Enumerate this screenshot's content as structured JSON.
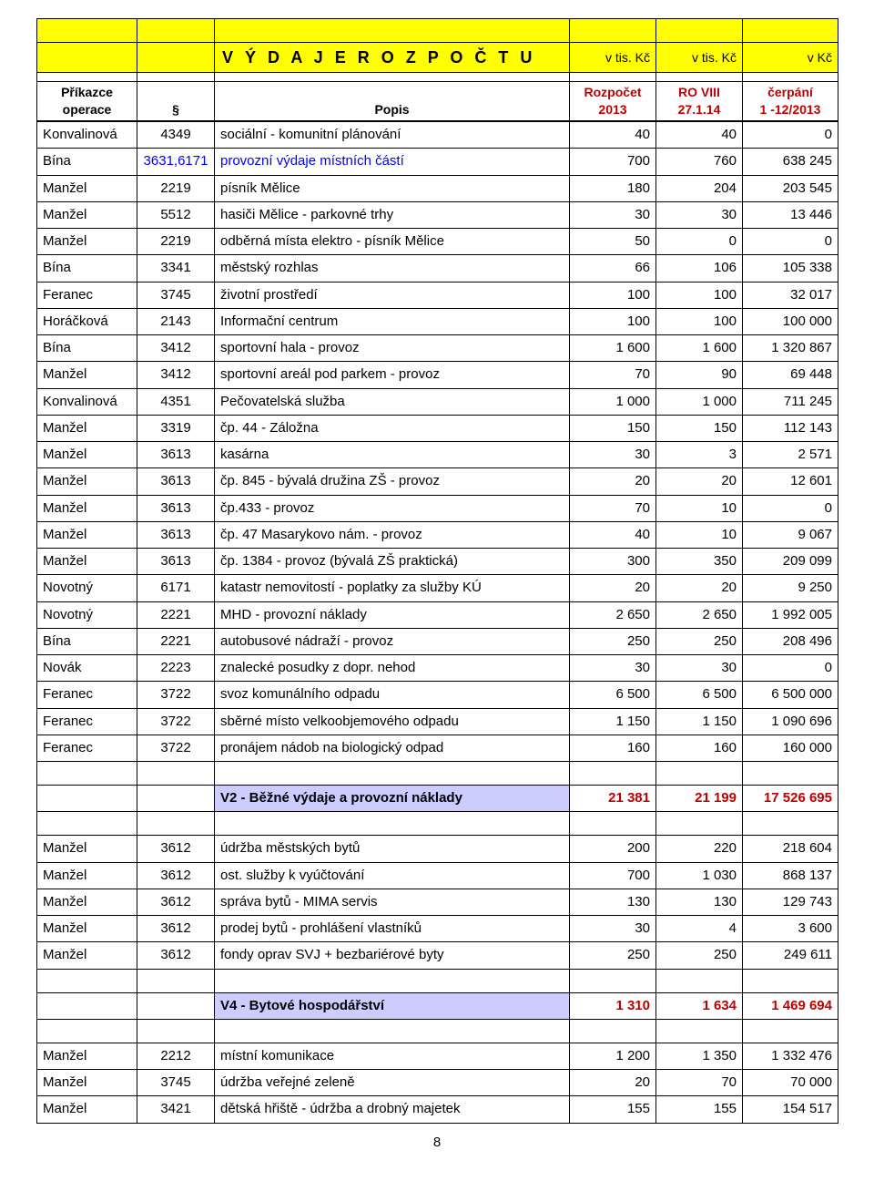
{
  "header": {
    "title": "V Ý D A J E   R O Z P O Č T U",
    "unit1": "v tis. Kč",
    "unit2": "v tis. Kč",
    "unit3": "v Kč",
    "col_prikazce_l1": "Příkazce",
    "col_prikazce_l2": "operace",
    "col_code": "§",
    "col_popis": "Popis",
    "col_rozpocet_l1": "Rozpočet",
    "col_rozpocet_l2": "2013",
    "col_ro_l1": "RO VIII",
    "col_ro_l2": "27.1.14",
    "col_cerp_l1": "čerpání",
    "col_cerp_l2": "1 -12/2013"
  },
  "rows": [
    {
      "p": "Konvalinová",
      "c": "4349",
      "d": "sociální - komunitní plánování",
      "v1": "40",
      "v2": "40",
      "v3": "0"
    },
    {
      "p": "Bína",
      "c": "3631,6171",
      "d": "provozní výdaje místních částí",
      "v1": "700",
      "v2": "760",
      "v3": "638 245",
      "blue": true
    },
    {
      "p": "Manžel",
      "c": "2219",
      "d": "písník Mělice",
      "v1": "180",
      "v2": "204",
      "v3": "203 545"
    },
    {
      "p": "Manžel",
      "c": "5512",
      "d": "hasiči Mělice - parkovné trhy",
      "v1": "30",
      "v2": "30",
      "v3": "13 446"
    },
    {
      "p": "Manžel",
      "c": "2219",
      "d": "odběrná místa elektro - písník Mělice",
      "v1": "50",
      "v2": "0",
      "v3": "0"
    },
    {
      "p": "Bína",
      "c": "3341",
      "d": "městský rozhlas",
      "v1": "66",
      "v2": "106",
      "v3": "105 338"
    },
    {
      "p": "Feranec",
      "c": "3745",
      "d": "životní prostředí",
      "v1": "100",
      "v2": "100",
      "v3": "32 017"
    },
    {
      "p": "Horáčková",
      "c": "2143",
      "d": "Informační centrum",
      "v1": "100",
      "v2": "100",
      "v3": "100 000"
    },
    {
      "p": "Bína",
      "c": "3412",
      "d": "sportovní hala - provoz",
      "v1": "1 600",
      "v2": "1 600",
      "v3": "1 320 867"
    },
    {
      "p": "Manžel",
      "c": "3412",
      "d": "sportovní areál pod parkem - provoz",
      "v1": "70",
      "v2": "90",
      "v3": "69 448"
    },
    {
      "p": "Konvalinová",
      "c": "4351",
      "d": "Pečovatelská služba",
      "v1": "1 000",
      "v2": "1 000",
      "v3": "711 245"
    },
    {
      "p": "Manžel",
      "c": "3319",
      "d": "čp. 44 - Záložna",
      "v1": "150",
      "v2": "150",
      "v3": "112 143"
    },
    {
      "p": "Manžel",
      "c": "3613",
      "d": "kasárna",
      "v1": "30",
      "v2": "3",
      "v3": "2 571"
    },
    {
      "p": "Manžel",
      "c": "3613",
      "d": "čp. 845 - bývalá družina ZŠ - provoz",
      "v1": "20",
      "v2": "20",
      "v3": "12 601"
    },
    {
      "p": "Manžel",
      "c": "3613",
      "d": "čp.433 - provoz",
      "v1": "70",
      "v2": "10",
      "v3": "0"
    },
    {
      "p": "Manžel",
      "c": "3613",
      "d": "čp. 47 Masarykovo nám. - provoz",
      "v1": "40",
      "v2": "10",
      "v3": "9 067"
    },
    {
      "p": "Manžel",
      "c": "3613",
      "d": "čp. 1384 - provoz (bývalá ZŠ praktická)",
      "v1": "300",
      "v2": "350",
      "v3": "209 099"
    },
    {
      "p": "Novotný",
      "c": "6171",
      "d": "katastr nemovitostí - poplatky za služby KÚ",
      "v1": "20",
      "v2": "20",
      "v3": "9 250"
    },
    {
      "p": "Novotný",
      "c": "2221",
      "d": "MHD - provozní náklady",
      "v1": "2 650",
      "v2": "2 650",
      "v3": "1 992 005"
    },
    {
      "p": "Bína",
      "c": "2221",
      "d": "autobusové nádraží - provoz",
      "v1": "250",
      "v2": "250",
      "v3": "208 496"
    },
    {
      "p": "Novák",
      "c": "2223",
      "d": "znalecké posudky z dopr. nehod",
      "v1": "30",
      "v2": "30",
      "v3": "0"
    },
    {
      "p": "Feranec",
      "c": "3722",
      "d": "svoz komunálního odpadu",
      "v1": "6 500",
      "v2": "6 500",
      "v3": "6 500 000"
    },
    {
      "p": "Feranec",
      "c": "3722",
      "d": "sběrné místo velkoobjemového odpadu",
      "v1": "1 150",
      "v2": "1 150",
      "v3": "1 090 696"
    },
    {
      "p": "Feranec",
      "c": "3722",
      "d": "pronájem nádob na biologický odpad",
      "v1": "160",
      "v2": "160",
      "v3": "160 000"
    }
  ],
  "summary_v2": {
    "label": "V2 - Běžné výdaje  a provozní náklady",
    "v1": "21 381",
    "v2": "21 199",
    "v3": "17 526 695"
  },
  "rows2": [
    {
      "p": "Manžel",
      "c": "3612",
      "d": "údržba městských bytů",
      "v1": "200",
      "v2": "220",
      "v3": "218 604"
    },
    {
      "p": "Manžel",
      "c": "3612",
      "d": "ost. služby k vyúčtování",
      "v1": "700",
      "v2": "1 030",
      "v3": "868 137"
    },
    {
      "p": "Manžel",
      "c": "3612",
      "d": "správa bytů - MIMA servis",
      "v1": "130",
      "v2": "130",
      "v3": "129 743"
    },
    {
      "p": "Manžel",
      "c": "3612",
      "d": "prodej bytů - prohlášení vlastníků",
      "v1": "30",
      "v2": "4",
      "v3": "3 600"
    },
    {
      "p": "Manžel",
      "c": "3612",
      "d": "fondy oprav SVJ + bezbariérové byty",
      "v1": "250",
      "v2": "250",
      "v3": "249 611"
    }
  ],
  "summary_v4": {
    "label": "V4 - Bytové hospodářství",
    "v1": "1 310",
    "v2": "1 634",
    "v3": "1 469 694"
  },
  "rows3": [
    {
      "p": "Manžel",
      "c": "2212",
      "d": "místní komunikace",
      "v1": "1 200",
      "v2": "1 350",
      "v3": "1 332 476"
    },
    {
      "p": "Manžel",
      "c": "3745",
      "d": "údržba veřejné zeleně",
      "v1": "20",
      "v2": "70",
      "v3": "70 000"
    },
    {
      "p": "Manžel",
      "c": "3421",
      "d": "dětská hřiště - údržba a drobný majetek",
      "v1": "155",
      "v2": "155",
      "v3": "154 517"
    }
  ],
  "page_number": "8"
}
